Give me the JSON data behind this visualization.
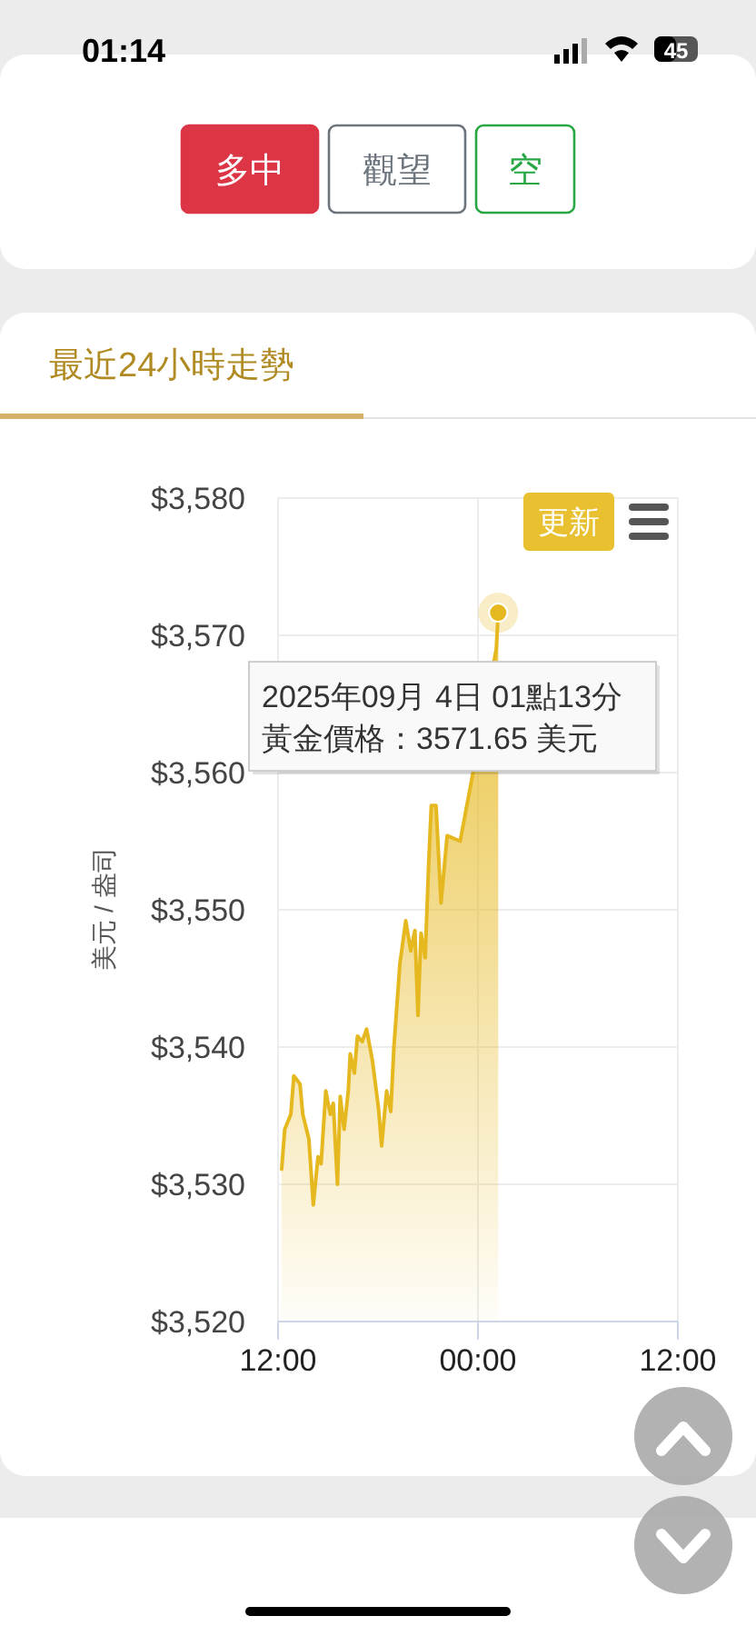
{
  "chart_data": {
    "type": "area",
    "title": "最近24小時走勢",
    "ylabel": "美元 / 盎司",
    "x": [
      "2025-09-03T12:13",
      "2025-09-03T12:24",
      "2025-09-03T12:46",
      "2025-09-03T12:57",
      "2025-09-03T13:19",
      "2025-09-03T13:29",
      "2025-09-03T13:51",
      "2025-09-03T14:07",
      "2025-09-03T14:24",
      "2025-09-03T14:35",
      "2025-09-03T14:52",
      "2025-09-03T15:08",
      "2025-09-03T15:19",
      "2025-09-03T15:34",
      "2025-09-03T15:44",
      "2025-09-03T15:58",
      "2025-09-03T16:13",
      "2025-09-03T16:20",
      "2025-09-03T16:35",
      "2025-09-03T16:46",
      "2025-09-03T17:03",
      "2025-09-03T17:19",
      "2025-09-03T17:40",
      "2025-09-03T18:02",
      "2025-09-03T18:13",
      "2025-09-03T18:31",
      "2025-09-03T18:46",
      "2025-09-03T18:57",
      "2025-09-03T19:19",
      "2025-09-03T19:40",
      "2025-09-03T19:58",
      "2025-09-03T20:13",
      "2025-09-03T20:24",
      "2025-09-03T20:35",
      "2025-09-03T20:50",
      "2025-09-03T21:03",
      "2025-09-03T21:12",
      "2025-09-03T21:29",
      "2025-09-03T21:47",
      "2025-09-03T22:09",
      "2025-09-03T22:56",
      "2025-09-04T01:06",
      "2025-09-04T01:13"
    ],
    "series": [
      {
        "color": "#e6b820",
        "values": [
          3531.1,
          3534.0,
          3535.1,
          3537.9,
          3537.3,
          3535.1,
          3533.3,
          3528.5,
          3532.0,
          3531.5,
          3536.8,
          3535.1,
          3535.9,
          3530.0,
          3536.4,
          3534.0,
          3536.8,
          3539.5,
          3538.1,
          3540.8,
          3540.4,
          3541.3,
          3539.0,
          3535.5,
          3532.8,
          3536.8,
          3535.3,
          3539.9,
          3546.1,
          3549.2,
          3547.0,
          3548.5,
          3542.3,
          3548.3,
          3546.5,
          3553.6,
          3557.6,
          3557.6,
          3550.5,
          3555.4,
          3555.0,
          3569.0,
          3571.65
        ]
      }
    ],
    "xlim": [
      "2025-09-03T12:00",
      "2025-09-04T12:00"
    ],
    "xticks": [
      {
        "value": "2025-09-03T12:00",
        "label": "12:00"
      },
      {
        "value": "2025-09-04T00:00",
        "label": "00:00"
      },
      {
        "value": "2025-09-04T12:00",
        "label": "12:00"
      }
    ],
    "ylim": [
      3520,
      3580
    ],
    "yticks": [
      {
        "value": 3520,
        "label": "$3,520"
      },
      {
        "value": 3530,
        "label": "$3,530"
      },
      {
        "value": 3540,
        "label": "$3,540"
      },
      {
        "value": 3550,
        "label": "$3,550"
      },
      {
        "value": 3560,
        "label": "$3,560"
      },
      {
        "value": 3570,
        "label": "$3,570"
      },
      {
        "value": 3580,
        "label": "$3,580"
      }
    ],
    "grid": true,
    "annotations": [
      "01:14",
      "45",
      "多中",
      "觀望",
      "空",
      "更新",
      "2025年09月 4日 01點13分",
      "黃金價格：3571.65 美元"
    ]
  }
}
